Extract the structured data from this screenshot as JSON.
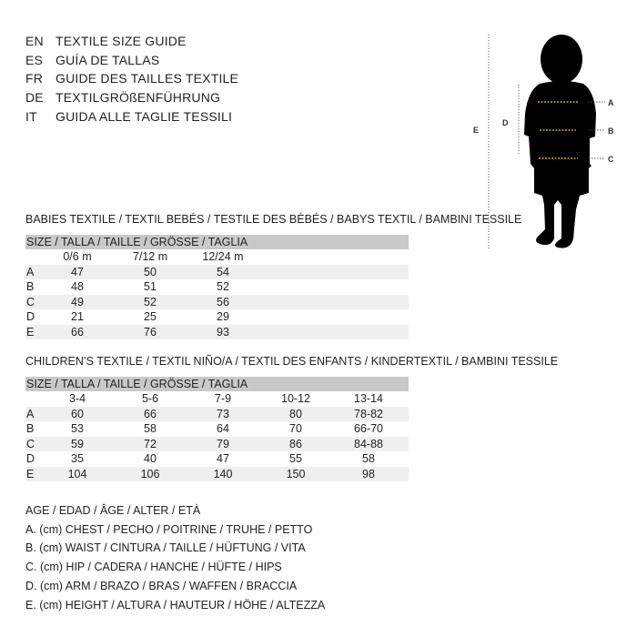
{
  "languages": [
    {
      "code": "EN",
      "text": "TEXTILE SIZE GUIDE"
    },
    {
      "code": "ES",
      "text": "GUÍA DE TALLAS"
    },
    {
      "code": "FR",
      "text": "GUIDE DES TAILLES TEXTILE"
    },
    {
      "code": "DE",
      "text": "TEXTILGRÖßENFÜHRUNG"
    },
    {
      "code": "IT",
      "text": "GUIDA ALLE TAGLIE TESSILI"
    }
  ],
  "babies": {
    "title": "BABIES TEXTILE / TEXTIL BEBÉS / TESTILE DES BÉBÉS / BABYS TEXTIL / BAMBINI TESSILE",
    "header": "SIZE / TALLA / TAILLE / GRÖSSE / TAGLIA",
    "columns": [
      "0/6 m",
      "7/12 m",
      "12/24 m"
    ],
    "rows": [
      {
        "label": "A",
        "values": [
          "47",
          "50",
          "54"
        ]
      },
      {
        "label": "B",
        "values": [
          "48",
          "51",
          "52"
        ]
      },
      {
        "label": "C",
        "values": [
          "49",
          "52",
          "56"
        ]
      },
      {
        "label": "D",
        "values": [
          "21",
          "25",
          "29"
        ]
      },
      {
        "label": "E",
        "values": [
          "66",
          "76",
          "93"
        ]
      }
    ]
  },
  "children": {
    "title": "CHILDREN’S TEXTILE / TEXTIL NIÑO/A / TEXTIL DES ENFANTS / KINDERTEXTIL / BAMBINI TESSILE",
    "header": "SIZE / TALLA / TAILLE / GRÖSSE / TAGLIA",
    "columns": [
      "3-4",
      "5-6",
      "7-9",
      "10-12",
      "13-14"
    ],
    "rows": [
      {
        "label": "A",
        "values": [
          "60",
          "66",
          "73",
          "80",
          "78-82"
        ]
      },
      {
        "label": "B",
        "values": [
          "53",
          "58",
          "64",
          "70",
          "66-70"
        ]
      },
      {
        "label": "C",
        "values": [
          "59",
          "72",
          "79",
          "86",
          "84-88"
        ]
      },
      {
        "label": "D",
        "values": [
          "35",
          "40",
          "47",
          "55",
          "58"
        ]
      },
      {
        "label": "E",
        "values": [
          "104",
          "106",
          "140",
          "150",
          "98"
        ]
      }
    ]
  },
  "legend": [
    "AGE / EDAD / ÂGE / ALTER / ETÀ",
    "A. (cm) CHEST / PECHO / POITRINE / TRUHE / PETTO",
    "B. (cm) WAIST / CINTURA / TAILLE / HÜFTUNG / VITA",
    "C. (cm) HIP / CADERA / HANCHE / HÜFTE / HIPS",
    "D. (cm) ARM / BRAZO / BRAS / WAFFEN / BRACCIA",
    "E. (cm) HEIGHT / ALTURA / HAUTEUR / HÖHE / ALTEZZA"
  ],
  "figure": {
    "labels": {
      "a": "A",
      "b": "B",
      "c": "C",
      "d": "D",
      "e": "E"
    },
    "measure_line_color": "#f0d000",
    "silhouette_color": "#000000"
  }
}
